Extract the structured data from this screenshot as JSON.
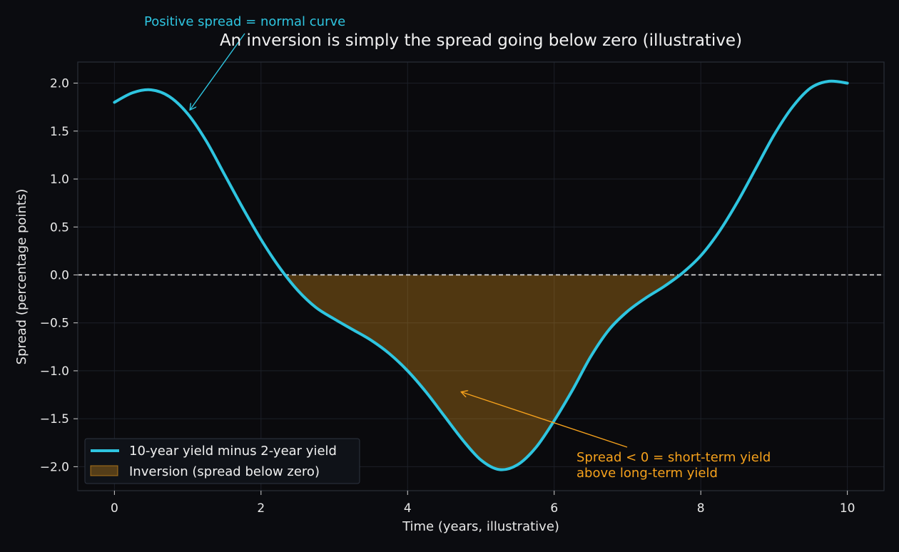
{
  "chart_data": {
    "type": "line",
    "title": "An inversion is simply the spread going below zero (illustrative)",
    "xlabel": "Time (years, illustrative)",
    "ylabel": "Spread (percentage points)",
    "xlim": [
      -0.5,
      10.5
    ],
    "ylim": [
      -2.25,
      2.22
    ],
    "x_ticks": [
      0,
      2,
      4,
      6,
      8,
      10
    ],
    "x_tick_labels": [
      "0",
      "2",
      "4",
      "6",
      "8",
      "10"
    ],
    "y_ticks": [
      2.0,
      1.5,
      1.0,
      0.5,
      0.0,
      -0.5,
      -1.0,
      -1.5,
      -2.0
    ],
    "y_tick_labels": [
      "2.0",
      "1.5",
      "1.0",
      "0.5",
      "0.0",
      "−0.5",
      "−1.0",
      "−1.5",
      "−2.0"
    ],
    "grid": true,
    "zero_line": {
      "y": 0,
      "style": "dashed",
      "color": "#e6e6e6"
    },
    "series": [
      {
        "name": "10-year yield minus 2-year yield",
        "color": "#2ec5e0",
        "x": [
          0,
          0.25,
          0.5,
          0.75,
          1.0,
          1.25,
          1.5,
          1.75,
          2.0,
          2.25,
          2.5,
          2.75,
          3.0,
          3.25,
          3.5,
          3.75,
          4.0,
          4.25,
          4.5,
          4.75,
          5.0,
          5.25,
          5.5,
          5.75,
          6.0,
          6.25,
          6.5,
          6.75,
          7.0,
          7.25,
          7.5,
          7.75,
          8.0,
          8.25,
          8.5,
          8.75,
          9.0,
          9.25,
          9.5,
          9.75,
          10.0
        ],
        "values": [
          1.8,
          1.9,
          1.93,
          1.86,
          1.68,
          1.4,
          1.05,
          0.7,
          0.37,
          0.08,
          -0.16,
          -0.34,
          -0.46,
          -0.57,
          -0.68,
          -0.82,
          -1.0,
          -1.22,
          -1.47,
          -1.72,
          -1.93,
          -2.03,
          -1.98,
          -1.8,
          -1.52,
          -1.2,
          -0.85,
          -0.57,
          -0.38,
          -0.24,
          -0.12,
          0.02,
          0.2,
          0.45,
          0.76,
          1.11,
          1.46,
          1.75,
          1.95,
          2.02,
          2.0
        ]
      }
    ],
    "fill": {
      "name": "Inversion (spread below zero)",
      "color": "#f5a11c",
      "opacity": 0.3,
      "where": "spread below zero"
    },
    "legend": {
      "placement": "lower-left"
    },
    "annotations": [
      {
        "text": "Positive spread = normal curve",
        "color": "#2ec5e0",
        "point": [
          1.03,
          1.72
        ],
        "text_pos": [
          1.8,
          2.6
        ]
      },
      {
        "text": "Spread < 0 = short-term yield",
        "text2": "above long-term yield",
        "color": "#f5a11c",
        "point": [
          4.73,
          -1.22
        ],
        "text_pos": [
          6.3,
          -1.97
        ]
      }
    ]
  }
}
